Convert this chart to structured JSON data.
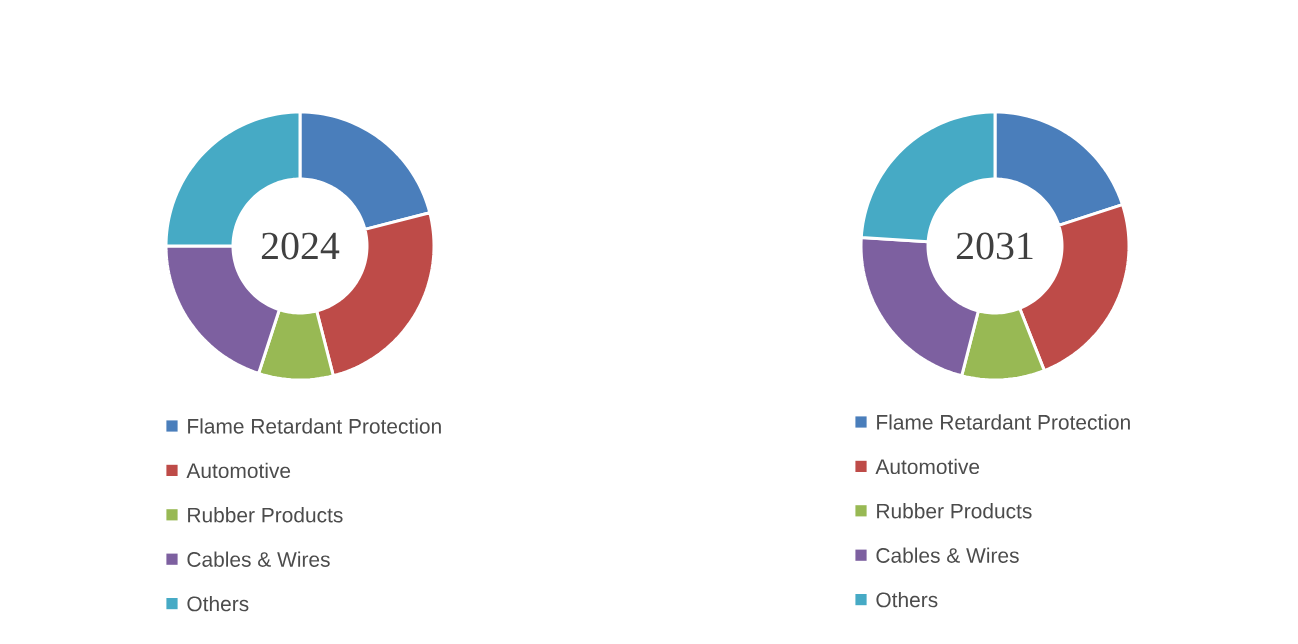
{
  "chart_data": [
    {
      "type": "donut",
      "title": "2024",
      "categories": [
        "Flame Retardant Protection",
        "Automotive",
        "Rubber Products",
        "Cables & Wires",
        "Others"
      ],
      "values": [
        21,
        25,
        9,
        20,
        25
      ],
      "colors": [
        "#4a7ebb",
        "#be4b48",
        "#98b954",
        "#7d60a0",
        "#46aac5"
      ],
      "legend": "bottom"
    },
    {
      "type": "donut",
      "title": "2031",
      "categories": [
        "Flame Retardant Protection",
        "Automotive",
        "Rubber Products",
        "Cables & Wires",
        "Others"
      ],
      "values": [
        20,
        24,
        10,
        22,
        24
      ],
      "colors": [
        "#4a7ebb",
        "#be4b48",
        "#98b954",
        "#7d60a0",
        "#46aac5"
      ],
      "legend": "bottom"
    }
  ]
}
